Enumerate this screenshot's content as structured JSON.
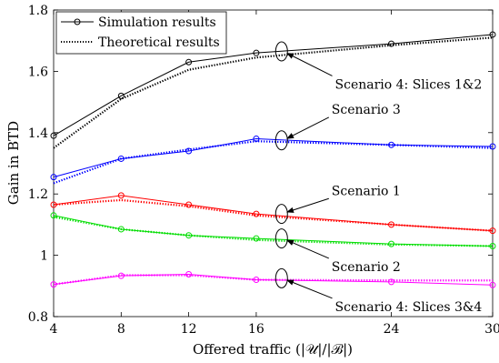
{
  "chart_data": {
    "type": "line",
    "xlabel": "Offered traffic (|𝒰|/|ℬ|)",
    "ylabel": "Gain in BTD",
    "xlim": [
      4,
      30
    ],
    "ylim": [
      0.8,
      1.8
    ],
    "xticks": [
      4,
      8,
      12,
      16,
      24,
      30
    ],
    "yticks": [
      0.8,
      1,
      1.2,
      1.4,
      1.6,
      1.8
    ],
    "grid": false,
    "legend_position": "top-left",
    "legend": [
      {
        "label": "Simulation results",
        "style": "solid",
        "marker": "circle"
      },
      {
        "label": "Theoretical results",
        "style": "dotted",
        "marker": "none"
      }
    ],
    "x": [
      4,
      8,
      12,
      16,
      24,
      30
    ],
    "series": [
      {
        "scenario": "Scenario 4: Slices 1&2",
        "color": "#000000",
        "simulation": [
          1.39,
          1.52,
          1.63,
          1.66,
          1.69,
          1.72
        ],
        "theoretical": [
          1.35,
          1.51,
          1.605,
          1.645,
          1.685,
          1.71
        ]
      },
      {
        "scenario": "Scenario 3",
        "color": "#0000ff",
        "simulation": [
          1.255,
          1.315,
          1.34,
          1.38,
          1.36,
          1.355
        ],
        "theoretical": [
          1.235,
          1.315,
          1.345,
          1.372,
          1.36,
          1.35
        ]
      },
      {
        "scenario": "Scenario 1",
        "color": "#ff0000",
        "simulation": [
          1.165,
          1.195,
          1.165,
          1.135,
          1.1,
          1.08
        ],
        "theoretical": [
          1.165,
          1.18,
          1.16,
          1.13,
          1.1,
          1.08
        ]
      },
      {
        "scenario": "Scenario 2",
        "color": "#00dd00",
        "simulation": [
          1.13,
          1.085,
          1.065,
          1.055,
          1.037,
          1.03
        ],
        "theoretical": [
          1.125,
          1.085,
          1.065,
          1.05,
          1.035,
          1.03
        ]
      },
      {
        "scenario": "Scenario 4: Slices 3&4",
        "color": "#ff00ff",
        "simulation": [
          0.905,
          0.933,
          0.938,
          0.92,
          0.913,
          0.903
        ],
        "theoretical": [
          0.905,
          0.935,
          0.935,
          0.92,
          0.918,
          0.918
        ]
      }
    ],
    "annotations": [
      {
        "text": "Scenario 4: Slices 1&2",
        "ellipse_x": 17.5,
        "ellipse_y": 1.665,
        "arrow_to": [
          20.5,
          1.585
        ]
      },
      {
        "text": "Scenario 3",
        "ellipse_x": 17.5,
        "ellipse_y": 1.375,
        "arrow_to": [
          20.3,
          1.45
        ]
      },
      {
        "text": "Scenario 1",
        "ellipse_x": 17.5,
        "ellipse_y": 1.135,
        "arrow_to": [
          20.3,
          1.185
        ]
      },
      {
        "text": "Scenario 2",
        "ellipse_x": 17.5,
        "ellipse_y": 1.055,
        "arrow_to": [
          20.3,
          0.99
        ]
      },
      {
        "text": "Scenario 4: Slices 3&4",
        "ellipse_x": 17.5,
        "ellipse_y": 0.925,
        "arrow_to": [
          20.5,
          0.86
        ]
      }
    ]
  }
}
